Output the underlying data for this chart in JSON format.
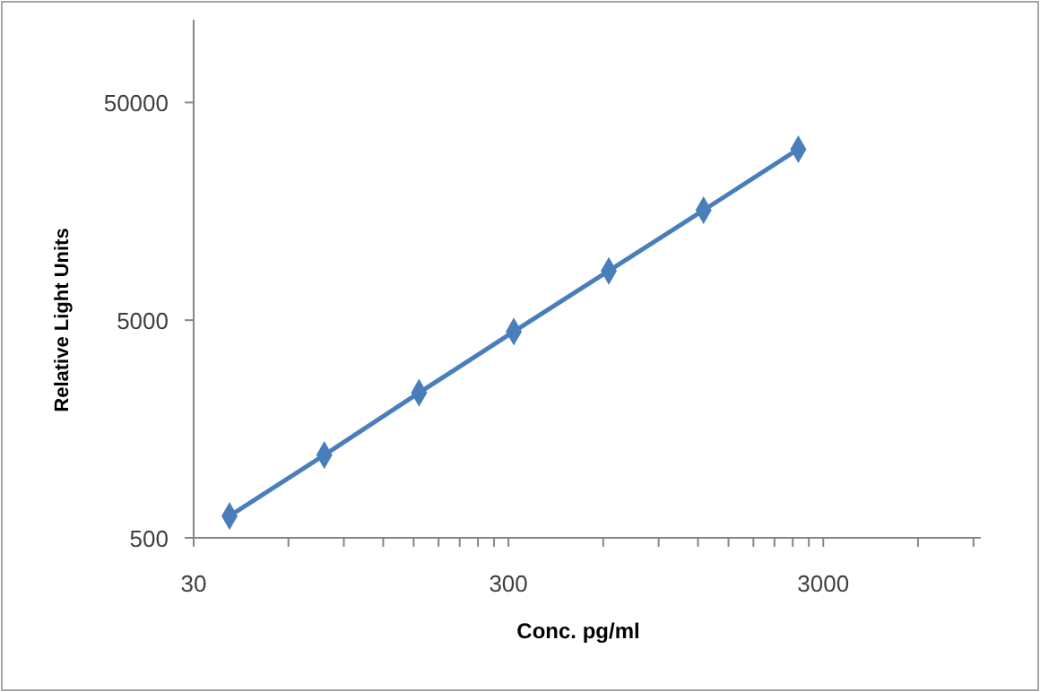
{
  "chart_data": {
    "type": "line",
    "xlabel": "Conc. pg/ml",
    "ylabel": "Relative Light Units",
    "log": "xy",
    "marker": "diamond",
    "line_style": "solid",
    "grid": false,
    "x": [
      39,
      78,
      156,
      312,
      625,
      1250,
      2500
    ],
    "series": [
      {
        "color": "#4a7ebb",
        "values": [
          630,
          1200,
          2320,
          4430,
          8420,
          16000,
          30500
        ]
      }
    ],
    "xlim": [
      30,
      9500
    ],
    "xticks": [
      30,
      {
        "value": 60,
        "label": null
      },
      {
        "value": 90,
        "label": null
      },
      {
        "value": 120,
        "label": null
      },
      {
        "value": 150,
        "label": null
      },
      {
        "value": 180,
        "label": null
      },
      {
        "value": 210,
        "label": null
      },
      {
        "value": 240,
        "label": null
      },
      {
        "value": 270,
        "label": null
      },
      300,
      {
        "value": 600,
        "label": null
      },
      {
        "value": 900,
        "label": null
      },
      {
        "value": 1200,
        "label": null
      },
      {
        "value": 1500,
        "label": null
      },
      {
        "value": 1800,
        "label": null
      },
      {
        "value": 2100,
        "label": null
      },
      {
        "value": 2400,
        "label": null
      },
      {
        "value": 2700,
        "label": null
      },
      3000,
      {
        "value": 6000,
        "label": null
      },
      {
        "value": 9000,
        "label": null
      }
    ],
    "ylim": [
      500,
      120000
    ],
    "yticks": [
      500,
      5000,
      50000
    ]
  }
}
